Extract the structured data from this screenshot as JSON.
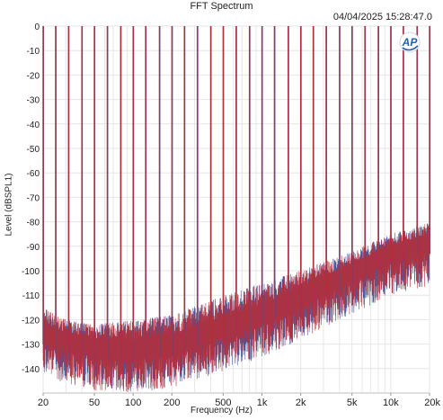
{
  "window": {
    "title": "FFT Spectrum",
    "timestamp": "04/04/2025 15:28:47.0",
    "logo_text": "AP"
  },
  "chart_data": {
    "type": "line",
    "title": "FFT Spectrum",
    "xlabel": "Frequency (Hz)",
    "ylabel": "Level (dBSPL1)",
    "xscale": "log",
    "xlim": [
      20,
      20000
    ],
    "ylim": [
      -150,
      0
    ],
    "grid": true,
    "x_ticks": [
      {
        "value": 20,
        "label": "20"
      },
      {
        "value": 50,
        "label": "50"
      },
      {
        "value": 100,
        "label": "100"
      },
      {
        "value": 200,
        "label": "200"
      },
      {
        "value": 500,
        "label": "500"
      },
      {
        "value": 1000,
        "label": "1k"
      },
      {
        "value": 2000,
        "label": "2k"
      },
      {
        "value": 5000,
        "label": "5k"
      },
      {
        "value": 10000,
        "label": "10k"
      },
      {
        "value": 20000,
        "label": "20k"
      }
    ],
    "y_ticks": [
      {
        "value": 0,
        "label": "0"
      },
      {
        "value": -10,
        "label": "-10"
      },
      {
        "value": -20,
        "label": "-20"
      },
      {
        "value": -30,
        "label": "-30"
      },
      {
        "value": -40,
        "label": "-40"
      },
      {
        "value": -50,
        "label": "-50"
      },
      {
        "value": -60,
        "label": "-60"
      },
      {
        "value": -70,
        "label": "-70"
      },
      {
        "value": -80,
        "label": "-80"
      },
      {
        "value": -90,
        "label": "-90"
      },
      {
        "value": -100,
        "label": "-100"
      },
      {
        "value": -110,
        "label": "-110"
      },
      {
        "value": -120,
        "label": "-120"
      },
      {
        "value": -130,
        "label": "-130"
      },
      {
        "value": -140,
        "label": "-140"
      }
    ],
    "tones_hz": [
      20,
      25,
      31.5,
      40,
      50,
      63,
      80,
      100,
      125,
      160,
      200,
      250,
      315,
      400,
      500,
      630,
      800,
      1000,
      1250,
      1600,
      2000,
      2500,
      3150,
      4000,
      5000,
      6300,
      8000,
      10000,
      12500,
      16000,
      20000
    ],
    "tone_level_db": 0,
    "noise_floor": {
      "x": [
        20,
        30,
        50,
        100,
        200,
        500,
        1000,
        2000,
        5000,
        10000,
        20000
      ],
      "y": [
        -125,
        -128,
        -131,
        -132,
        -130,
        -123,
        -118,
        -110,
        -100,
        -92,
        -88
      ],
      "peak_envelope": [
        -115,
        -120,
        -122,
        -120,
        -118,
        -110,
        -105,
        -100,
        -92,
        -85,
        -80
      ]
    },
    "series": [
      {
        "color": "#b03040"
      },
      {
        "color": "#3c4f9a"
      }
    ]
  }
}
